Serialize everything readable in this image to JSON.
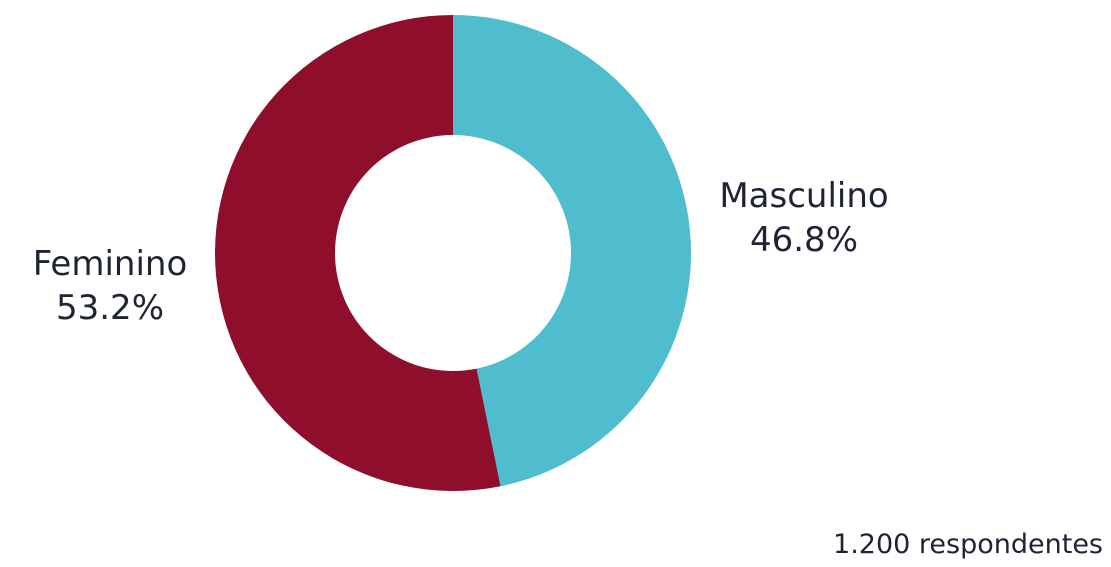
{
  "chart_data": {
    "type": "pie",
    "donut": true,
    "slices": [
      {
        "name": "Masculino",
        "value": 46.8,
        "label": "46.8%",
        "color": "#4fbdce"
      },
      {
        "name": "Feminino",
        "value": 53.2,
        "label": "53.2%",
        "color": "#8e0e2c"
      }
    ]
  },
  "labels": {
    "masculino_name": "Masculino",
    "masculino_pct": "46.8%",
    "feminino_name": "Feminino",
    "feminino_pct": "53.2%"
  },
  "note": "1.200 respondentes"
}
